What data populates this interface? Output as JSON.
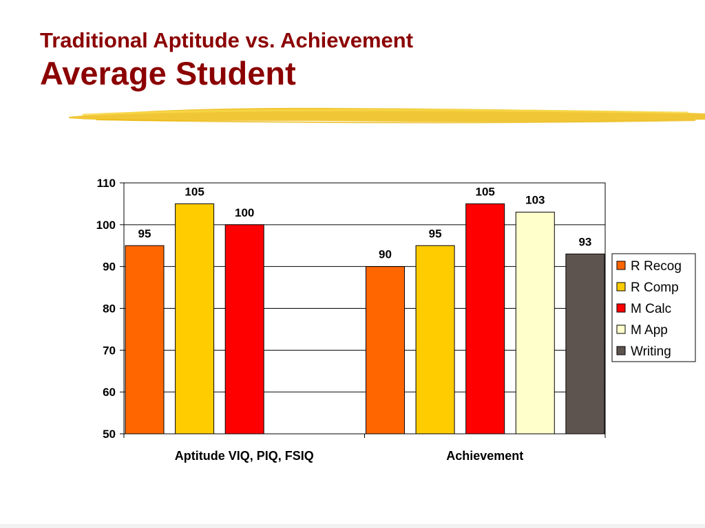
{
  "slide": {
    "title_line1": "Traditional Aptitude vs. Achievement",
    "title_line2": "Average Student"
  },
  "colors": {
    "title": "#8b0000",
    "brush": "#f0c020"
  },
  "chart_data": {
    "type": "bar",
    "title": "",
    "xlabel": "",
    "ylabel": "",
    "ylim": [
      50,
      110
    ],
    "yticks": [
      50,
      60,
      70,
      80,
      90,
      100,
      110
    ],
    "grid": true,
    "legend_position": "right",
    "legend": [
      {
        "name": "R Recog",
        "color": "#ff6600"
      },
      {
        "name": "R Comp",
        "color": "#ffcc00"
      },
      {
        "name": "M Calc",
        "color": "#ff0000"
      },
      {
        "name": "M App",
        "color": "#ffffcc"
      },
      {
        "name": "Writing",
        "color": "#5e544f"
      }
    ],
    "groups": [
      {
        "category": "Aptitude VIQ, PIQ, FSIQ",
        "bars": [
          {
            "label": "95",
            "value": 95,
            "color": "#ff6600"
          },
          {
            "label": "105",
            "value": 105,
            "color": "#ffcc00"
          },
          {
            "label": "100",
            "value": 100,
            "color": "#ff0000"
          }
        ]
      },
      {
        "category": "Achievement",
        "bars": [
          {
            "label": "90",
            "value": 90,
            "color": "#ff6600"
          },
          {
            "label": "95",
            "value": 95,
            "color": "#ffcc00"
          },
          {
            "label": "105",
            "value": 105,
            "color": "#ff0000"
          },
          {
            "label": "103",
            "value": 103,
            "color": "#ffffcc"
          },
          {
            "label": "93",
            "value": 93,
            "color": "#5e544f"
          }
        ]
      }
    ]
  }
}
